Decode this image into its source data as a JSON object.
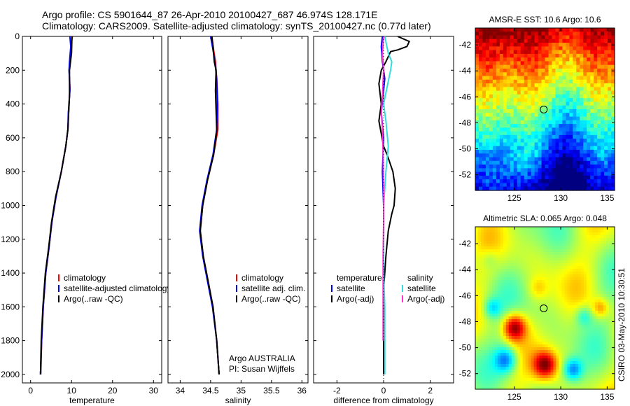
{
  "header": {
    "title_line1": "Argo profile: CS 5901644_87 26-Apr-2010 20100427_687 46.974S 128.171E",
    "title_line2": "Climatology: CARS2009. Satellite-adjusted climatology: synTS_20100427.nc (0.77d later)"
  },
  "colors": {
    "climatology": "#ff0000",
    "satellite": "#0000ff",
    "argo": "#000000",
    "sat_salinity": "#33dddd",
    "argo_salinity": "#ff33cc"
  },
  "chart_data": [
    {
      "type": "line",
      "name": "temperature-profile",
      "xlabel": "temperature",
      "xticks": [
        0,
        10,
        20,
        30
      ],
      "xlim": [
        -2,
        32
      ],
      "ylim": [
        0,
        2050
      ],
      "yticks": [
        0,
        200,
        400,
        600,
        800,
        1000,
        1200,
        1400,
        1600,
        1800,
        2000
      ],
      "legend": [
        "climatology",
        "satellite-adjusted climatology",
        "Argo(..raw -QC)"
      ],
      "series": [
        {
          "name": "climatology",
          "color_key": "climatology",
          "points": [
            [
              10.2,
              0
            ],
            [
              9.9,
              50
            ],
            [
              9.8,
              120
            ],
            [
              9.4,
              200
            ],
            [
              9.6,
              300
            ],
            [
              9.3,
              450
            ],
            [
              9.1,
              550
            ],
            [
              8.6,
              650
            ],
            [
              7.5,
              800
            ],
            [
              6.2,
              950
            ],
            [
              5.2,
              1100
            ],
            [
              4.5,
              1250
            ],
            [
              3.7,
              1400
            ],
            [
              3.1,
              1600
            ],
            [
              2.7,
              1800
            ],
            [
              2.5,
              2000
            ]
          ]
        },
        {
          "name": "satellite-adjusted",
          "color_key": "satellite",
          "points": [
            [
              9.6,
              0
            ],
            [
              9.8,
              60
            ],
            [
              9.5,
              150
            ],
            [
              9.4,
              200
            ],
            [
              9.6,
              320
            ],
            [
              9.2,
              450
            ],
            [
              9.1,
              550
            ],
            [
              8.6,
              650
            ],
            [
              7.5,
              800
            ],
            [
              6.2,
              950
            ],
            [
              5.2,
              1100
            ],
            [
              4.5,
              1250
            ],
            [
              3.7,
              1400
            ],
            [
              3.1,
              1600
            ],
            [
              2.7,
              1800
            ],
            [
              2.4,
              2000
            ]
          ]
        },
        {
          "name": "Argo",
          "color_key": "argo",
          "points": [
            [
              10.1,
              0
            ],
            [
              10.0,
              100
            ],
            [
              9.5,
              200
            ],
            [
              9.5,
              350
            ],
            [
              9.3,
              450
            ],
            [
              9.1,
              550
            ],
            [
              8.6,
              650
            ],
            [
              7.5,
              800
            ],
            [
              6.1,
              950
            ],
            [
              5.1,
              1100
            ],
            [
              4.4,
              1250
            ],
            [
              3.6,
              1400
            ],
            [
              3.0,
              1600
            ],
            [
              2.6,
              1800
            ],
            [
              2.4,
              2000
            ]
          ]
        }
      ]
    },
    {
      "type": "line",
      "name": "salinity-profile",
      "xlabel": "salinity",
      "xticks": [
        34,
        34.5,
        35,
        35.5,
        36
      ],
      "xlim": [
        33.8,
        36.1
      ],
      "ylim": [
        0,
        2050
      ],
      "legend": [
        "climatology",
        "satellite adj. clim.",
        "Argo(..raw -QC)"
      ],
      "annotation": [
        "Argo AUSTRALIA",
        "PI: Susan Wijffels"
      ],
      "series": [
        {
          "name": "climatology",
          "color_key": "climatology",
          "points": [
            [
              34.52,
              0
            ],
            [
              34.55,
              80
            ],
            [
              34.58,
              150
            ],
            [
              34.6,
              250
            ],
            [
              34.62,
              400
            ],
            [
              34.62,
              550
            ],
            [
              34.55,
              700
            ],
            [
              34.45,
              850
            ],
            [
              34.37,
              1000
            ],
            [
              34.33,
              1150
            ],
            [
              34.38,
              1300
            ],
            [
              34.46,
              1450
            ],
            [
              34.54,
              1600
            ],
            [
              34.6,
              1800
            ],
            [
              34.64,
              2000
            ]
          ]
        },
        {
          "name": "satellite-adjusted",
          "color_key": "satellite",
          "points": [
            [
              34.5,
              0
            ],
            [
              34.54,
              80
            ],
            [
              34.57,
              150
            ],
            [
              34.6,
              250
            ],
            [
              34.61,
              400
            ],
            [
              34.6,
              550
            ],
            [
              34.54,
              700
            ],
            [
              34.44,
              850
            ],
            [
              34.36,
              1000
            ],
            [
              34.32,
              1150
            ],
            [
              34.37,
              1300
            ],
            [
              34.45,
              1450
            ],
            [
              34.53,
              1600
            ],
            [
              34.6,
              1800
            ],
            [
              34.64,
              2000
            ]
          ]
        },
        {
          "name": "Argo",
          "color_key": "argo",
          "points": [
            [
              34.52,
              0
            ],
            [
              34.54,
              60
            ],
            [
              34.56,
              150
            ],
            [
              34.59,
              200
            ],
            [
              34.58,
              320
            ],
            [
              34.6,
              560
            ],
            [
              34.55,
              700
            ],
            [
              34.45,
              850
            ],
            [
              34.37,
              1000
            ],
            [
              34.33,
              1150
            ],
            [
              34.38,
              1300
            ],
            [
              34.46,
              1450
            ],
            [
              34.54,
              1600
            ],
            [
              34.6,
              1800
            ],
            [
              34.64,
              2000
            ]
          ]
        }
      ]
    },
    {
      "type": "line",
      "name": "difference-profile",
      "xlabel": "difference from climatology",
      "xticks": [
        -2,
        0,
        2
      ],
      "xlim": [
        -3,
        3
      ],
      "ylim": [
        0,
        2050
      ],
      "legend_left_title": "temperature",
      "legend_right_title": "salinity",
      "legend_left": [
        "satellite",
        "Argo(-adj)"
      ],
      "legend_right": [
        "satellite",
        "Argo(-adj)"
      ],
      "series": [
        {
          "name": "temperature-satellite",
          "color_key": "satellite",
          "points": [
            [
              -0.05,
              0
            ],
            [
              -0.1,
              60
            ],
            [
              -0.05,
              150
            ],
            [
              0.05,
              250
            ],
            [
              -0.1,
              450
            ],
            [
              0.0,
              600
            ],
            [
              -0.05,
              800
            ],
            [
              0.0,
              1000
            ],
            [
              0.0,
              1400
            ],
            [
              0.0,
              2000
            ]
          ]
        },
        {
          "name": "temperature-argo",
          "color_key": "argo",
          "points": [
            [
              0.6,
              0
            ],
            [
              1.1,
              30
            ],
            [
              1.0,
              60
            ],
            [
              0.6,
              80
            ],
            [
              0.3,
              90
            ],
            [
              0.1,
              150
            ],
            [
              -0.1,
              200
            ],
            [
              -0.2,
              280
            ],
            [
              -0.1,
              400
            ],
            [
              -0.2,
              500
            ],
            [
              0.0,
              650
            ],
            [
              0.15,
              700
            ],
            [
              0.4,
              800
            ],
            [
              0.5,
              900
            ],
            [
              0.45,
              1000
            ],
            [
              0.35,
              1050
            ],
            [
              0.2,
              1150
            ],
            [
              0.1,
              1300
            ],
            [
              0.0,
              1500
            ],
            [
              0.0,
              2000
            ]
          ]
        },
        {
          "name": "salinity-satellite",
          "color_key": "sat_salinity",
          "points": [
            [
              0.05,
              0
            ],
            [
              0.2,
              100
            ],
            [
              0.35,
              150
            ],
            [
              0.3,
              200
            ],
            [
              0.15,
              300
            ],
            [
              0.0,
              400
            ],
            [
              0.1,
              500
            ],
            [
              0.2,
              650
            ],
            [
              0.1,
              800
            ],
            [
              0.05,
              900
            ],
            [
              0.0,
              1000
            ],
            [
              0.0,
              1400
            ],
            [
              0.05,
              1600
            ],
            [
              0.05,
              1800
            ],
            [
              0.05,
              2000
            ]
          ]
        },
        {
          "name": "salinity-argo",
          "color_key": "argo_salinity",
          "points": [
            [
              0.0,
              0
            ],
            [
              -0.05,
              100
            ],
            [
              0.0,
              200
            ],
            [
              -0.05,
              350
            ],
            [
              -0.1,
              450
            ],
            [
              -0.05,
              550
            ],
            [
              -0.02,
              700
            ],
            [
              0.0,
              900
            ],
            [
              0.0,
              1100
            ],
            [
              -0.02,
              1300
            ],
            [
              -0.02,
              1500
            ],
            [
              -0.02,
              1700
            ],
            [
              -0.02,
              1800
            ]
          ]
        }
      ]
    },
    {
      "type": "heatmap",
      "name": "sst-map",
      "title": "AMSR-E SST: 10.6 Argo: 10.6",
      "xticks": [
        125,
        130,
        135
      ],
      "yticks": [
        -42,
        -44,
        -46,
        -48,
        -50,
        -52
      ],
      "xlim": [
        120.8,
        135.8
      ],
      "ylim": [
        -53.2,
        -40.7
      ],
      "marker": [
        128.171,
        -46.974
      ]
    },
    {
      "type": "heatmap",
      "name": "sla-map",
      "title": "Altimetric SLA: 0.065 Argo: 0.048",
      "xticks": [
        125,
        130,
        135
      ],
      "yticks": [
        -42,
        -44,
        -46,
        -48,
        -50,
        -52
      ],
      "xlim": [
        120.8,
        135.8
      ],
      "ylim": [
        -53.2,
        -40.7
      ],
      "marker": [
        128.171,
        -46.974
      ]
    }
  ],
  "footer": {
    "credit": "CSIRO 03-May-2010 10:30:51"
  }
}
